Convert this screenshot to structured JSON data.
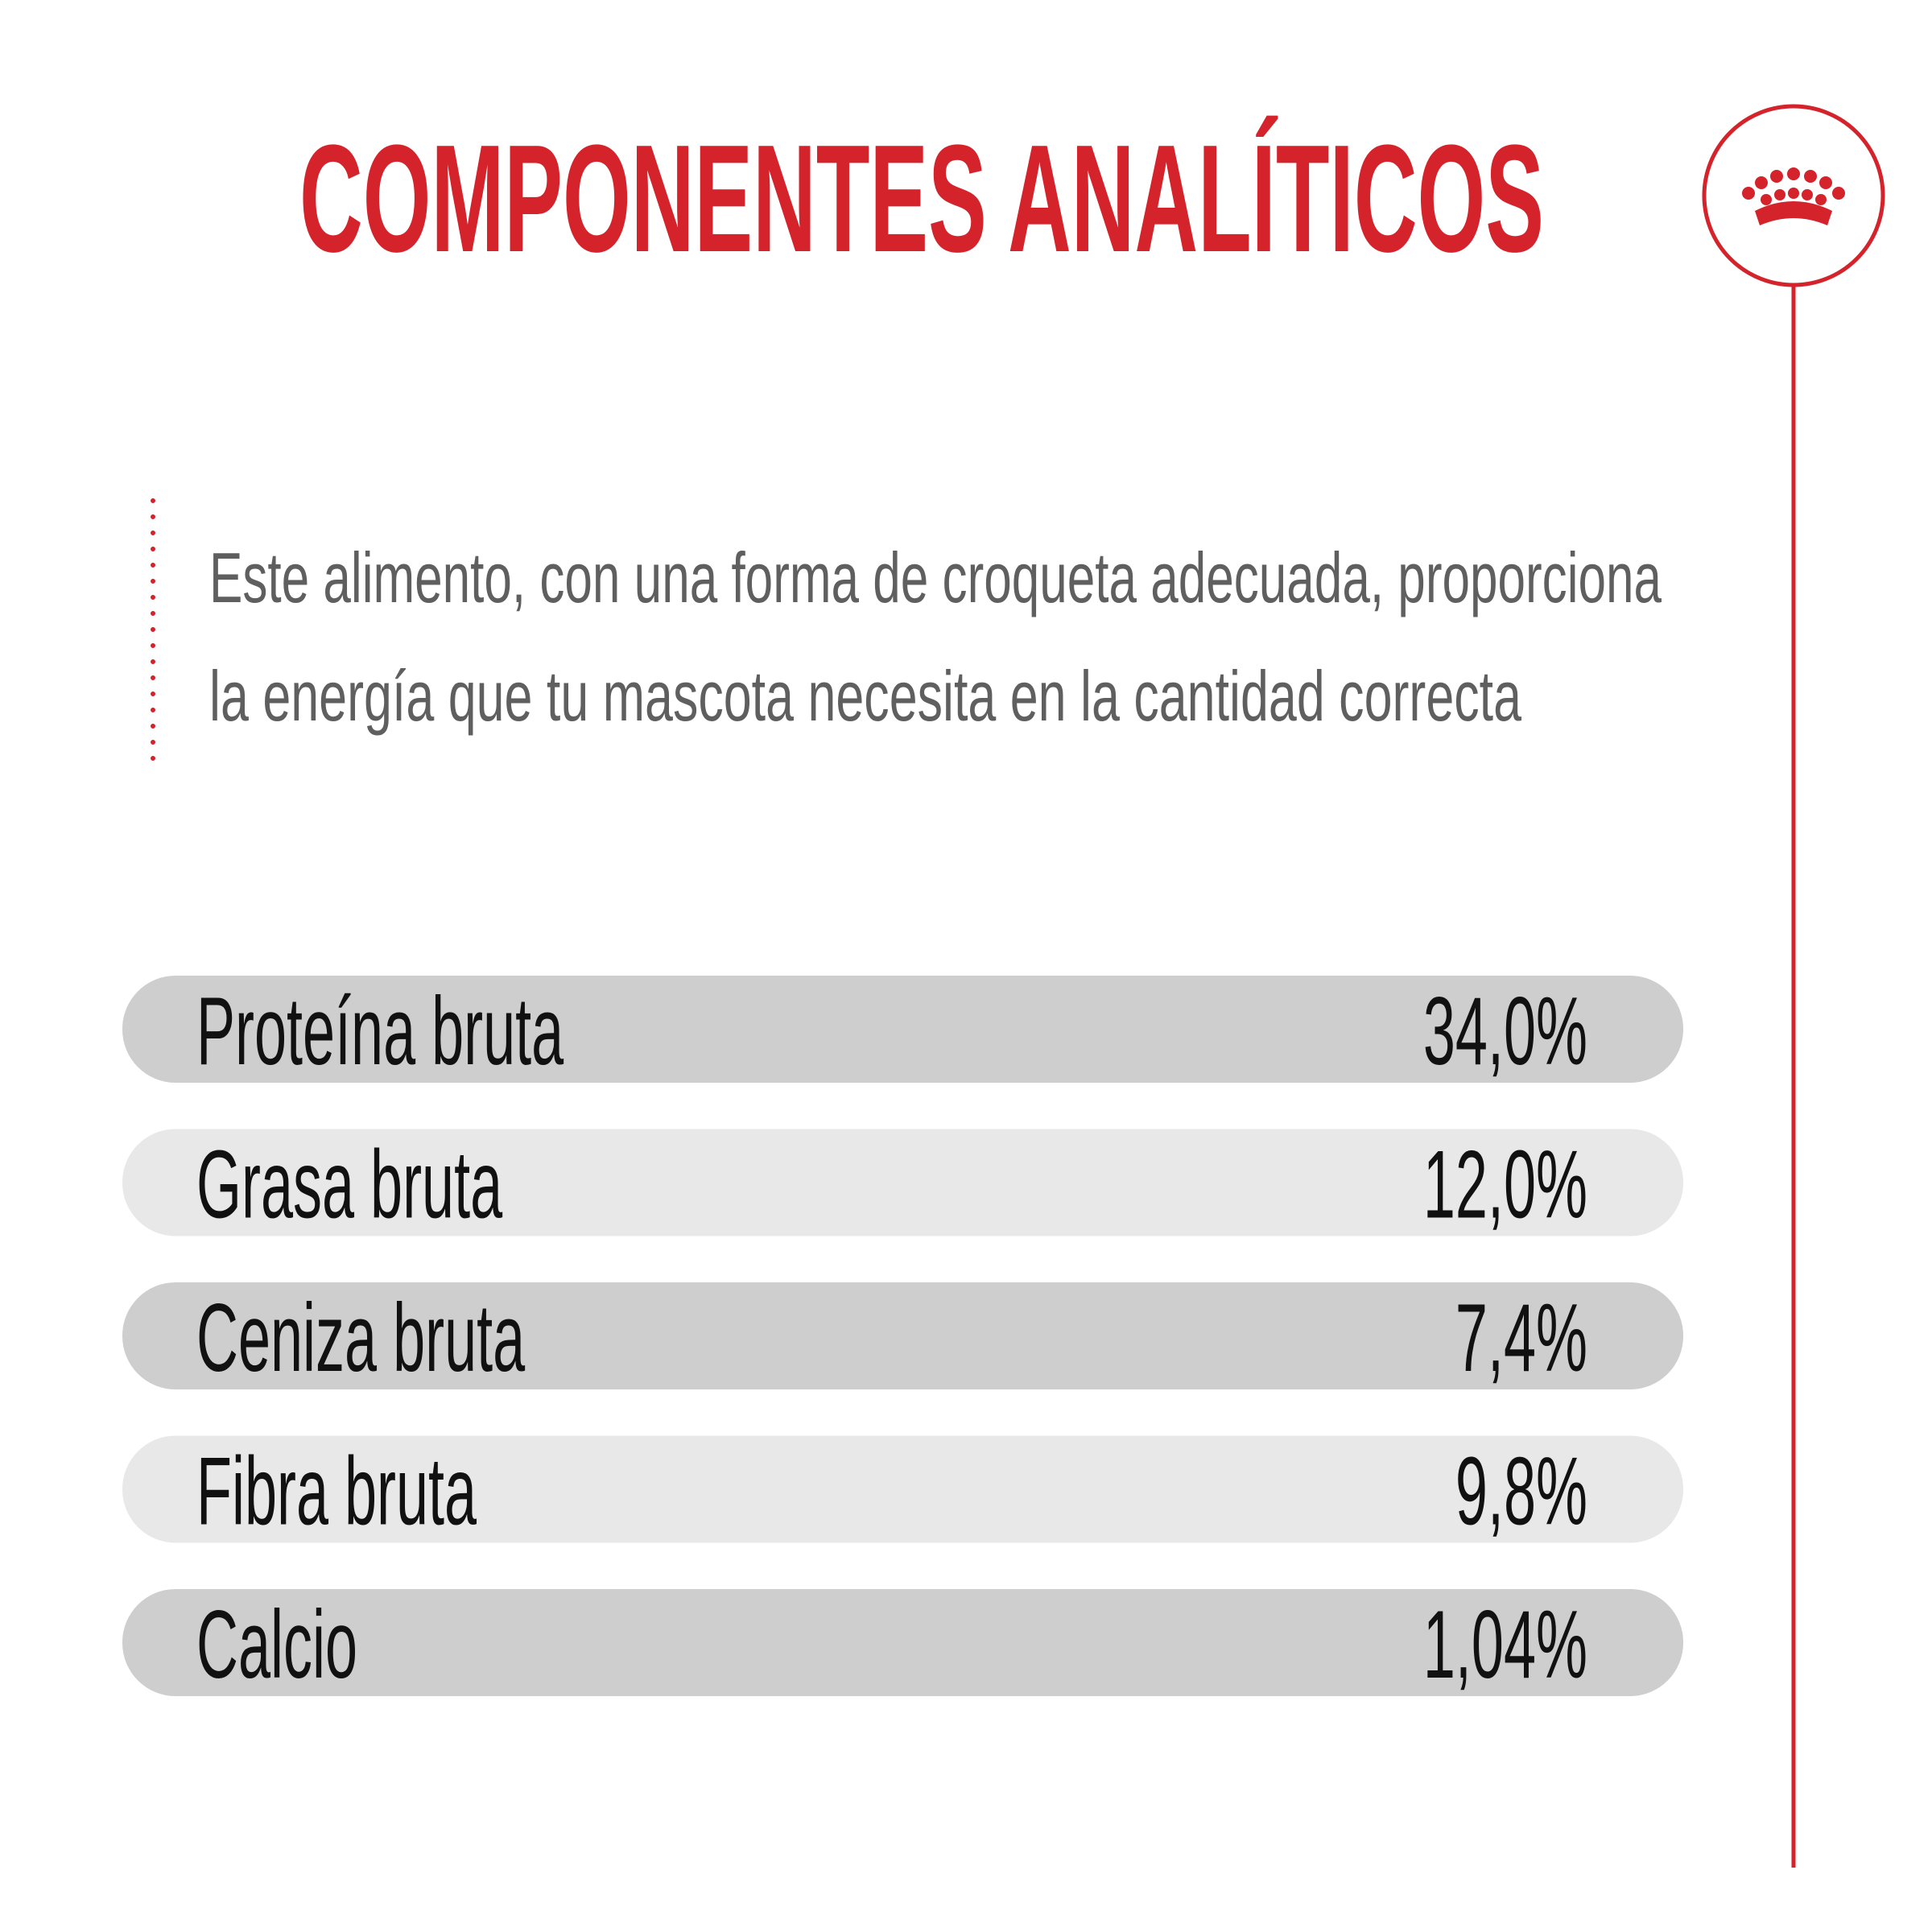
{
  "header": {
    "title": "COMPONENTES ANALÍTICOS"
  },
  "description": {
    "lines": [
      "Este alimento, con una forma de croqueta adecuada, proporciona",
      "la energía que tu mascota necesita en la cantidad correcta"
    ]
  },
  "table": {
    "rows": [
      [
        "Proteína bruta",
        "34,0%"
      ],
      [
        "Grasa bruta",
        "12,0%"
      ],
      [
        "Ceniza bruta",
        "7,4%"
      ],
      [
        "Fibra bruta",
        "9,8%"
      ],
      [
        "Calcio",
        "1,04%"
      ]
    ]
  }
}
